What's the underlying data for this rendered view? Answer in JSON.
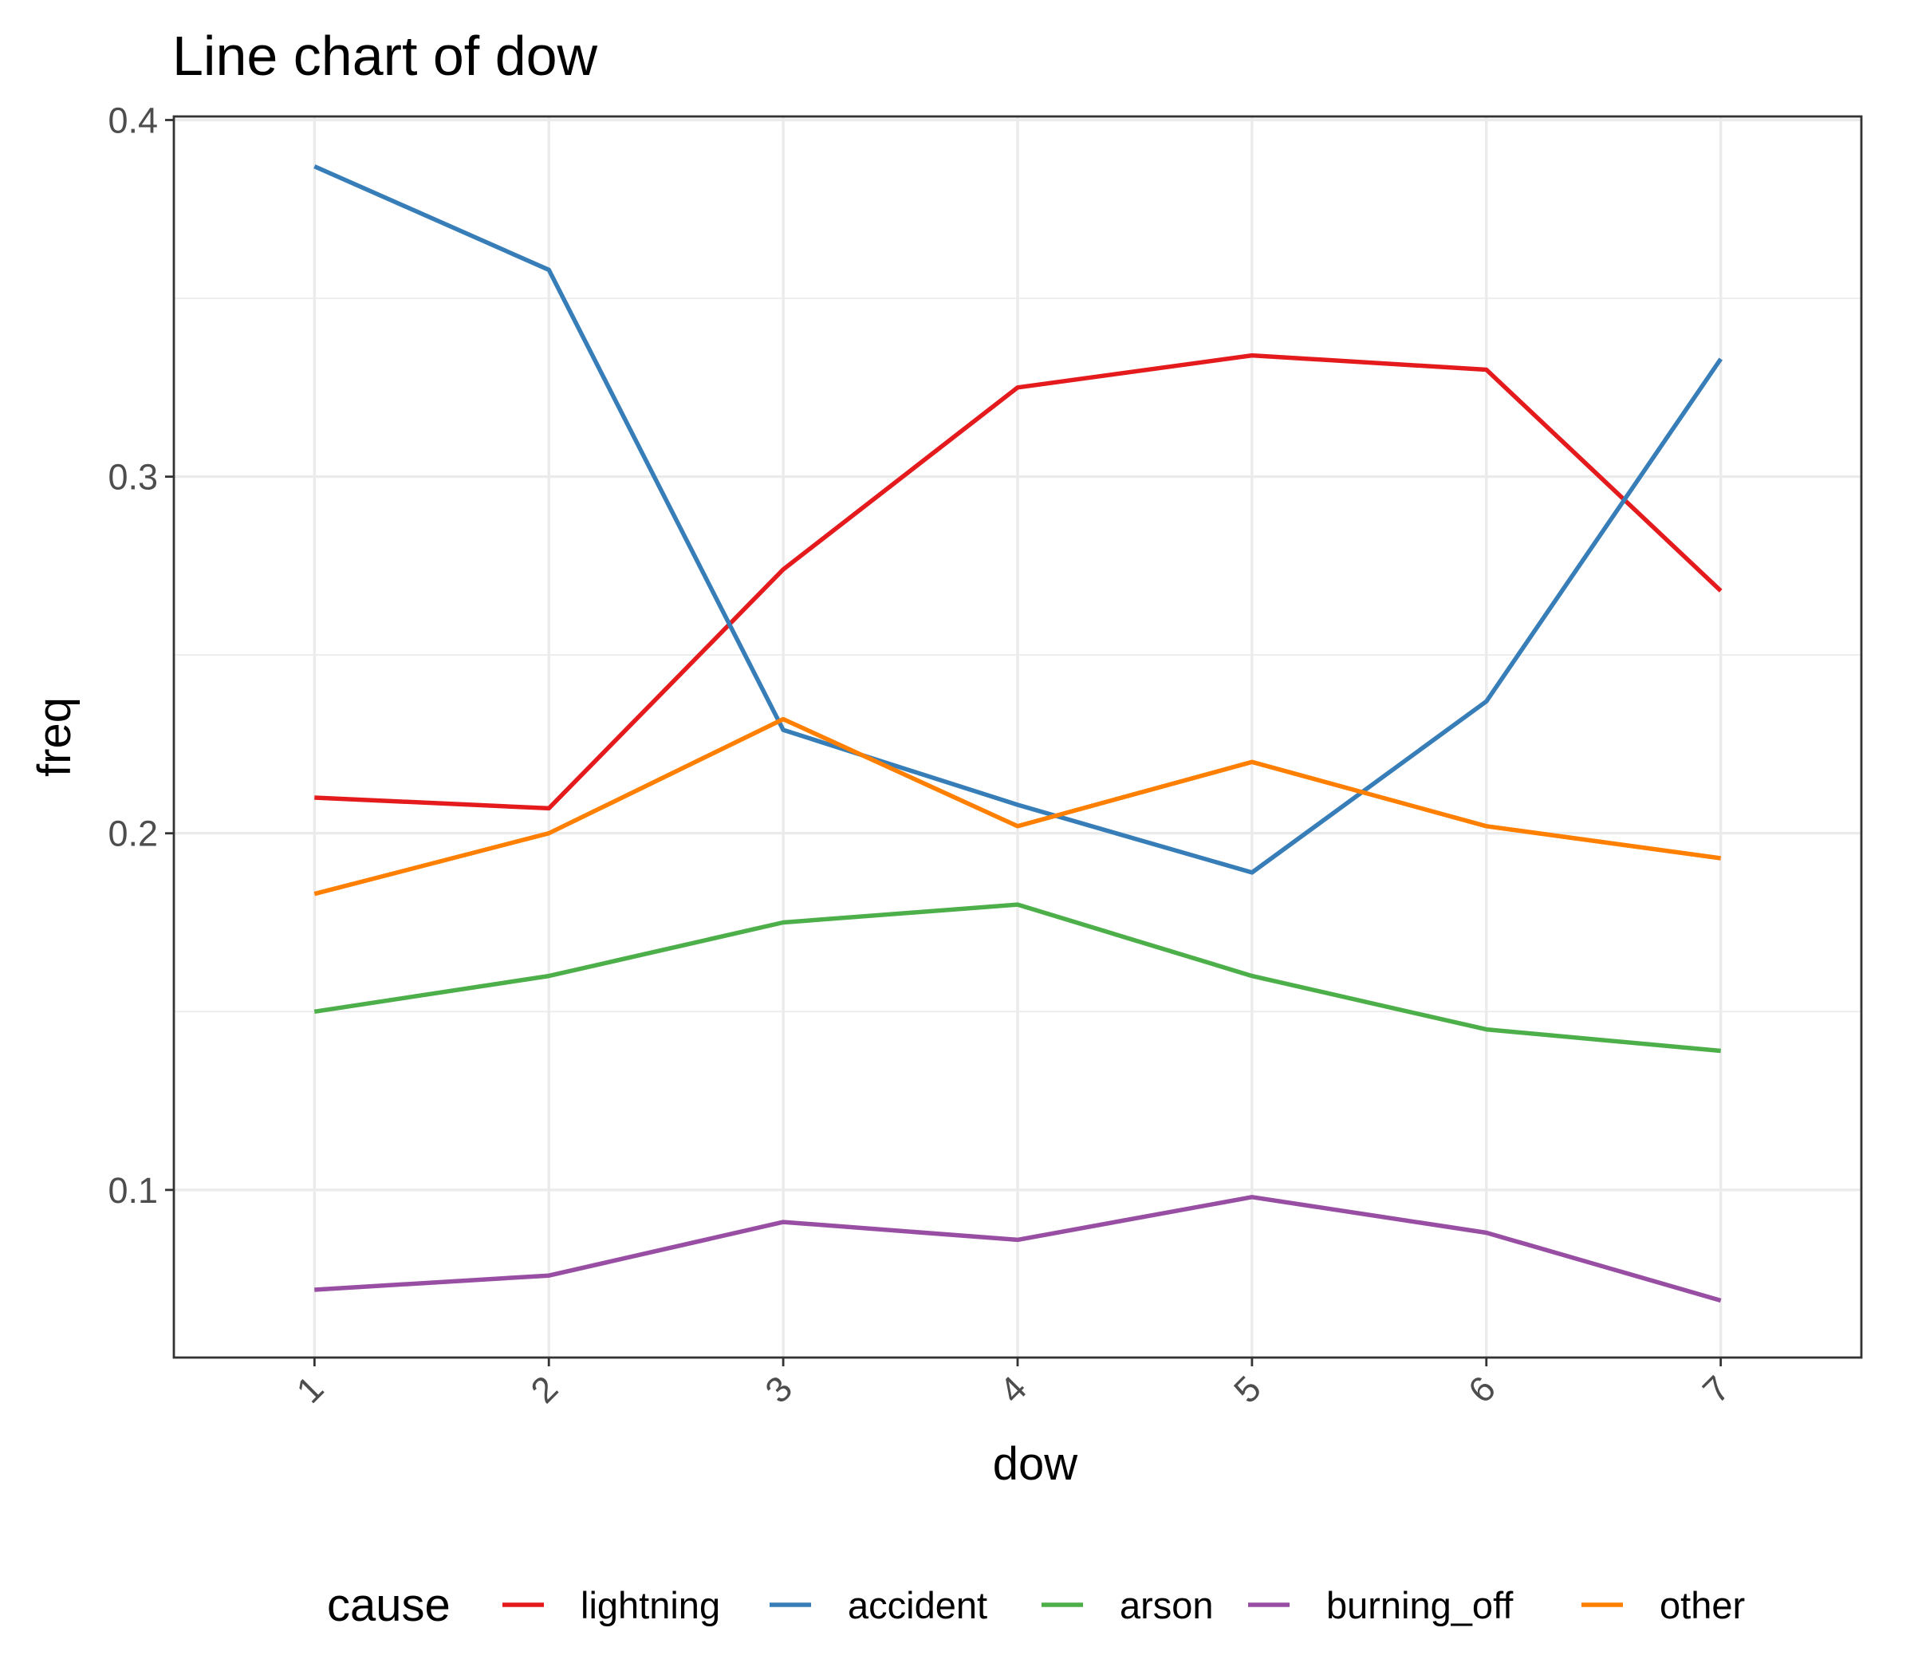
{
  "chart_data": {
    "type": "line",
    "title": "Line chart of dow",
    "xlabel": "dow",
    "ylabel": "freq",
    "x": [
      1,
      2,
      3,
      4,
      5,
      6,
      7
    ],
    "xticks": [
      "1",
      "2",
      "3",
      "4",
      "5",
      "6",
      "7"
    ],
    "xlim": [
      0.4,
      7.6
    ],
    "ylim": [
      0.053,
      0.401
    ],
    "yticks": [
      0.1,
      0.2,
      0.3,
      0.4
    ],
    "ytick_labels": [
      "0.1",
      "0.2",
      "0.3",
      "0.4"
    ],
    "yminor": [
      0.15,
      0.25,
      0.35
    ],
    "grid": true,
    "legend": {
      "title": "cause",
      "position": "bottom"
    },
    "series": [
      {
        "name": "lightning",
        "color": "#e41a1c",
        "values": [
          0.21,
          0.207,
          0.274,
          0.325,
          0.334,
          0.33,
          0.268
        ]
      },
      {
        "name": "accident",
        "color": "#377eb8",
        "values": [
          0.387,
          0.358,
          0.229,
          0.208,
          0.189,
          0.237,
          0.333
        ]
      },
      {
        "name": "arson",
        "color": "#4daf4a",
        "values": [
          0.15,
          0.16,
          0.175,
          0.18,
          0.16,
          0.145,
          0.139
        ]
      },
      {
        "name": "burning_off",
        "color": "#984ea3",
        "values": [
          0.072,
          0.076,
          0.091,
          0.086,
          0.098,
          0.088,
          0.069
        ]
      },
      {
        "name": "other",
        "color": "#ff7f00",
        "values": [
          0.183,
          0.2,
          0.232,
          0.202,
          0.22,
          0.202,
          0.193
        ]
      }
    ]
  }
}
